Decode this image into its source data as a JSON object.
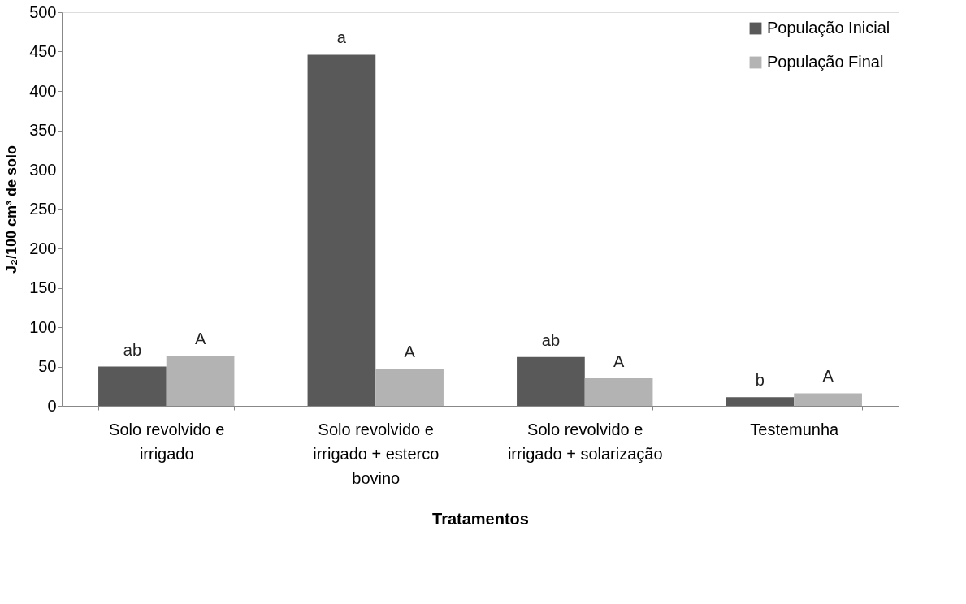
{
  "chart_data": {
    "type": "bar",
    "xlabel": "Tratamentos",
    "ylabel": "J₂/100 cm³ de solo",
    "categories": [
      "Solo revolvido e irrigado",
      "Solo revolvido e irrigado + esterco bovino",
      "Solo revolvido e irrigado + solarização",
      "Testemunha"
    ],
    "series": [
      {
        "name": "População Inicial",
        "color": "#595959",
        "values": [
          50,
          446,
          62,
          11
        ],
        "value_labels": [
          "ab",
          "a",
          "ab",
          "b"
        ]
      },
      {
        "name": "População Final",
        "color": "#b3b3b3",
        "values": [
          64,
          47,
          35,
          16
        ],
        "value_labels": [
          "A",
          "A",
          "A",
          "A"
        ]
      }
    ],
    "ylim": [
      0,
      500
    ],
    "yticks": [
      0,
      50,
      100,
      150,
      200,
      250,
      300,
      350,
      400,
      450,
      500
    ],
    "grid": false,
    "legend": "top right"
  }
}
